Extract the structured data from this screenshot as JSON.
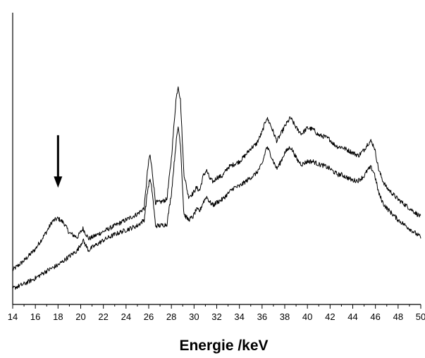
{
  "chart_data": {
    "type": "line",
    "title": "",
    "xlabel": "Energie /keV",
    "ylabel": "",
    "xlim": [
      14,
      50
    ],
    "ylim": [
      0,
      100
    ],
    "y_ticks_labeled": false,
    "grid": false,
    "legend": "none",
    "line_color": "#000000",
    "x_ticks": [
      14,
      16,
      18,
      20,
      22,
      24,
      26,
      28,
      30,
      32,
      34,
      36,
      38,
      40,
      42,
      44,
      46,
      48,
      50
    ],
    "x_tick_labels": [
      "14",
      "16",
      "18",
      "20",
      "22",
      "24",
      "26",
      "28",
      "30",
      "32",
      "34",
      "36",
      "38",
      "40",
      "42",
      "44",
      "46",
      "48",
      "50"
    ],
    "annotations": [
      {
        "type": "arrow",
        "x": 18.0,
        "y_from": 58,
        "y_to": 40,
        "points_to": "peak"
      }
    ],
    "series": [
      {
        "x": [
          14,
          15,
          16,
          17,
          17.5,
          18,
          18.5,
          19,
          19.7,
          20.2,
          20.7,
          21,
          22,
          23,
          24,
          25,
          25.6,
          25.9,
          26.1,
          26.3,
          26.6,
          27,
          27.6,
          28,
          28.4,
          28.6,
          28.8,
          29.1,
          29.5,
          29.9,
          30.2,
          30.5,
          30.8,
          31.1,
          31.4,
          31.7,
          32,
          32.5,
          33,
          33.5,
          34,
          34.5,
          35,
          35.5,
          36,
          36.4,
          36.7,
          37,
          37.3,
          37.6,
          38,
          38.5,
          38.8,
          39.1,
          39.5,
          40,
          40.5,
          41,
          41.5,
          42,
          42.3,
          42.7,
          43,
          43.5,
          44,
          44.5,
          45,
          45.3,
          45.6,
          45.9,
          46.3,
          46.7,
          47,
          47.5,
          48,
          48.5,
          49,
          49.5,
          50
        ],
        "y": [
          11.8,
          15,
          19,
          25,
          28.5,
          29.5,
          28,
          24.5,
          23,
          26,
          22.5,
          23,
          25,
          27,
          29,
          31,
          33,
          46,
          51.5,
          46,
          35,
          35,
          36,
          50,
          70,
          75,
          70,
          45,
          37,
          38,
          40,
          39,
          44,
          46,
          43,
          42,
          43.5,
          44,
          47,
          48,
          49,
          51,
          53.5,
          55,
          59,
          64,
          62,
          59,
          56,
          58,
          61,
          64,
          62,
          60,
          58.5,
          60.5,
          60,
          58,
          57.5,
          56.5,
          55,
          54,
          54,
          53,
          52,
          51,
          53,
          55,
          56,
          54,
          46,
          42,
          40,
          38,
          36,
          34.5,
          33,
          31.5,
          30
        ]
      },
      {
        "x": [
          14,
          15,
          16,
          17,
          18,
          19,
          19.7,
          20.2,
          20.7,
          21,
          22,
          23,
          24,
          25,
          25.6,
          25.9,
          26.1,
          26.3,
          26.6,
          27,
          27.6,
          28,
          28.4,
          28.6,
          28.8,
          29.1,
          29.5,
          29.9,
          30.2,
          30.5,
          30.8,
          31.1,
          31.4,
          31.7,
          32,
          32.5,
          33,
          33.5,
          34,
          34.5,
          35,
          35.5,
          36,
          36.4,
          36.7,
          37,
          37.3,
          37.6,
          38,
          38.5,
          38.8,
          39.1,
          39.5,
          40,
          40.5,
          41,
          41.5,
          42,
          42.3,
          42.7,
          43,
          43.5,
          44,
          44.5,
          45,
          45.3,
          45.6,
          45.9,
          46.3,
          46.7,
          47,
          47.5,
          48,
          48.5,
          49,
          49.5,
          50
        ],
        "y": [
          5.5,
          7,
          9,
          11.5,
          13.5,
          16.5,
          18.5,
          22,
          18.5,
          19.5,
          22,
          24,
          25.5,
          27,
          29,
          39,
          43,
          39,
          27,
          27,
          27.5,
          38,
          55,
          61,
          55,
          31,
          29,
          30,
          32.5,
          32,
          35,
          37,
          35,
          34,
          35,
          36,
          38,
          40,
          40.5,
          42,
          43.5,
          45,
          48,
          54,
          52,
          49,
          46.5,
          48.5,
          52,
          54,
          52,
          49.5,
          48,
          49,
          49,
          48,
          47.5,
          46.5,
          45.5,
          44.5,
          44.5,
          43.5,
          42.5,
          42.5,
          44,
          46,
          47,
          45,
          38,
          34.5,
          33,
          31,
          29,
          27.5,
          26,
          24.5,
          23
        ]
      }
    ]
  }
}
